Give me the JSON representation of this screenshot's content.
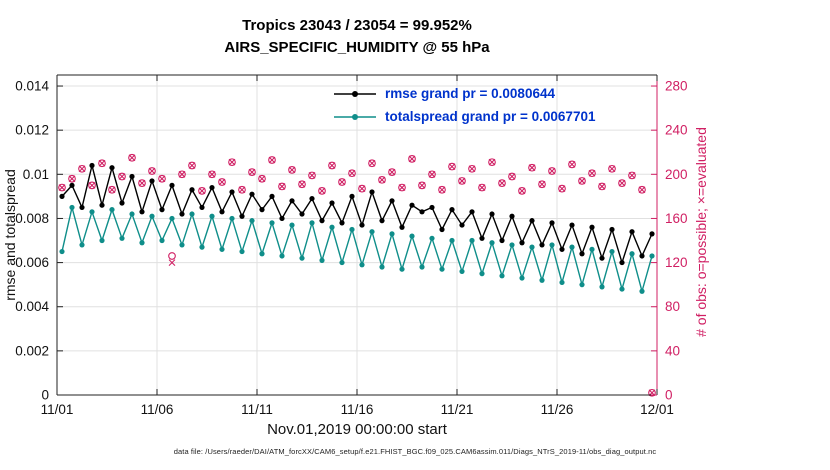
{
  "chart_data": {
    "type": "line",
    "title": "Tropics 23043 / 23054 = 99.952%",
    "subtitle": "AIRS_SPECIFIC_HUMIDITY @ 55 hPa",
    "xlabel": "Nov.01,2019 00:00:00 start",
    "ylabel_left": "rmse and totalspread",
    "ylabel_right": "# of obs: o=possible; ×=evaluated",
    "footer": "data file: /Users/raeder/DAI/ATM_forcXX/CAM6_setup/f.e21.FHIST_BGC.f09_025.CAM6assim.011/Diags_NTrS_2019-11/obs_diag_output.nc",
    "x_range_days": [
      0,
      30
    ],
    "x_start_days": 0.25,
    "x_step_days": 0.5,
    "x_tick_days": [
      0,
      5,
      10,
      15,
      20,
      25,
      30
    ],
    "x_ticks": [
      "11/01",
      "11/06",
      "11/11",
      "11/16",
      "11/21",
      "11/26",
      "12/01"
    ],
    "ylim_left": [
      0,
      0.0145
    ],
    "y_ticks_left": [
      0,
      0.002,
      0.004,
      0.006,
      0.008,
      0.01,
      0.012,
      0.014
    ],
    "ylim_right": [
      0,
      290
    ],
    "y_ticks_right": [
      0,
      40,
      80,
      120,
      160,
      200,
      240,
      280
    ],
    "colors": {
      "grid": "#e0e0e0",
      "axis": "#222222",
      "legend_text": "#0033cc"
    },
    "series": [
      {
        "id": "rmse",
        "name": "rmse grand pr = 0.0080644",
        "color": "#000000",
        "values": [
          0.009,
          0.0095,
          0.0085,
          0.0104,
          0.0086,
          0.0103,
          0.0087,
          0.0099,
          0.0083,
          0.0097,
          0.0084,
          0.0095,
          0.0082,
          0.0093,
          0.0085,
          0.0094,
          0.0083,
          0.0092,
          0.0081,
          0.0091,
          0.0084,
          0.009,
          0.008,
          0.0088,
          0.0082,
          0.0089,
          0.0079,
          0.0087,
          0.0078,
          0.009,
          0.0077,
          0.0092,
          0.0079,
          0.0088,
          0.0076,
          0.0086,
          0.0083,
          0.0085,
          0.0075,
          0.0084,
          0.0077,
          0.0083,
          0.0071,
          0.0082,
          0.007,
          0.0081,
          0.0069,
          0.0079,
          0.0068,
          0.0078,
          0.0066,
          0.0077,
          0.0064,
          0.0076,
          0.0062,
          0.0075,
          0.006,
          0.0074,
          0.0063,
          0.0073
        ]
      },
      {
        "id": "totalspread",
        "name": "totalspread grand pr = 0.0067701",
        "color": "#0f8e8a",
        "values": [
          0.0065,
          0.0085,
          0.0068,
          0.0083,
          0.007,
          0.0084,
          0.0071,
          0.0082,
          0.0069,
          0.0081,
          0.007,
          0.008,
          0.0068,
          0.0082,
          0.0067,
          0.0081,
          0.0066,
          0.008,
          0.0065,
          0.0079,
          0.0064,
          0.0078,
          0.0063,
          0.0077,
          0.0062,
          0.0078,
          0.0061,
          0.0076,
          0.006,
          0.0075,
          0.0059,
          0.0074,
          0.0058,
          0.0073,
          0.0057,
          0.0072,
          0.0058,
          0.0071,
          0.0057,
          0.007,
          0.0056,
          0.007,
          0.0055,
          0.0069,
          0.0054,
          0.0068,
          0.0053,
          0.0067,
          0.0052,
          0.0068,
          0.0051,
          0.0067,
          0.005,
          0.0066,
          0.0049,
          0.0065,
          0.0048,
          0.0064,
          0.0047,
          0.0063
        ]
      }
    ],
    "obs": {
      "color": "#d01f63",
      "possible": [
        188,
        196,
        205,
        190,
        210,
        186,
        198,
        215,
        192,
        203,
        196,
        126,
        200,
        208,
        185,
        200,
        193,
        211,
        186,
        202,
        196,
        213,
        189,
        204,
        191,
        199,
        185,
        208,
        193,
        201,
        187,
        210,
        195,
        202,
        188,
        214,
        190,
        200,
        186,
        207,
        194,
        205,
        188,
        211,
        192,
        198,
        185,
        206,
        191,
        203,
        187,
        209,
        194,
        201,
        189,
        205,
        192,
        199,
        186,
        2
      ],
      "evaluated": [
        188,
        196,
        205,
        190,
        210,
        186,
        198,
        215,
        192,
        203,
        196,
        120,
        200,
        208,
        185,
        200,
        193,
        211,
        186,
        202,
        196,
        213,
        189,
        204,
        191,
        199,
        185,
        208,
        193,
        201,
        187,
        210,
        195,
        202,
        188,
        214,
        190,
        200,
        186,
        207,
        194,
        205,
        188,
        211,
        192,
        198,
        185,
        206,
        191,
        203,
        187,
        209,
        194,
        201,
        189,
        205,
        192,
        199,
        186,
        2
      ]
    }
  }
}
